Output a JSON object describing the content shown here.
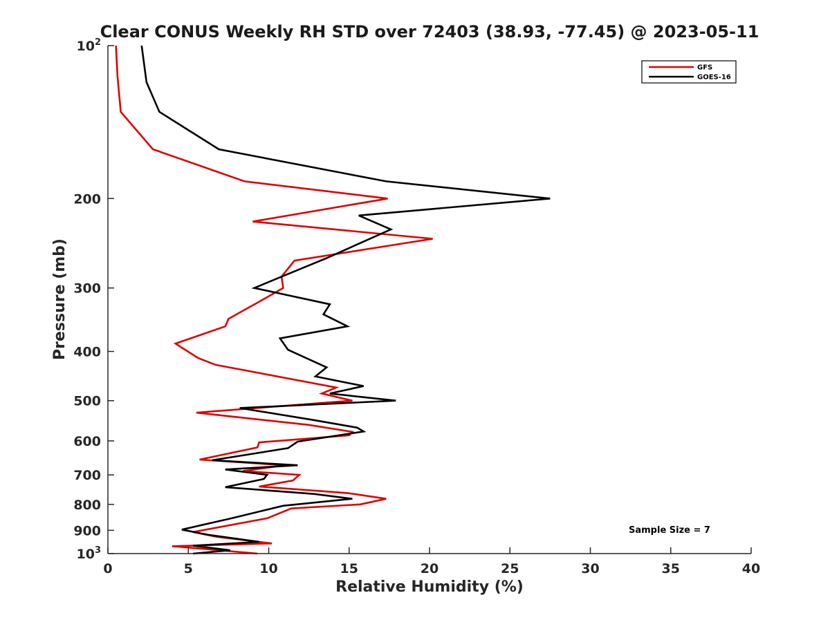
{
  "chart_data": {
    "type": "line",
    "title": "Clear CONUS Weekly RH STD over 72403 (38.93, -77.45) @ 2023-05-11",
    "xlabel": "Relative Humidity (%)",
    "ylabel": "Pressure (mb)",
    "xlim": [
      0,
      40
    ],
    "ylim": [
      100,
      1000
    ],
    "y_scale": "log",
    "y_reversed": true,
    "grid": false,
    "legend_position": "top-right",
    "x_ticks": [
      0,
      5,
      10,
      15,
      20,
      25,
      30,
      35,
      40
    ],
    "y_ticks": [
      {
        "value": 100,
        "base": "10",
        "exp": "2"
      },
      {
        "value": 200,
        "text": "200"
      },
      {
        "value": 300,
        "text": "300"
      },
      {
        "value": 400,
        "text": "400"
      },
      {
        "value": 500,
        "text": "500"
      },
      {
        "value": 600,
        "text": "600"
      },
      {
        "value": 700,
        "text": "700"
      },
      {
        "value": 800,
        "text": "800"
      },
      {
        "value": 900,
        "text": "900"
      },
      {
        "value": 1000,
        "base": "10",
        "exp": "3"
      }
    ],
    "annotation": "Sample Size = 7",
    "series": [
      {
        "name": "GFS",
        "color": "#e00000",
        "points": [
          [
            0.5,
            100
          ],
          [
            0.6,
            115
          ],
          [
            0.8,
            135
          ],
          [
            2.8,
            160
          ],
          [
            8.5,
            185
          ],
          [
            17.4,
            200
          ],
          [
            9.0,
            222
          ],
          [
            20.2,
            240
          ],
          [
            11.6,
            265
          ],
          [
            10.8,
            285
          ],
          [
            10.9,
            300
          ],
          [
            9.2,
            322
          ],
          [
            7.5,
            345
          ],
          [
            7.3,
            357
          ],
          [
            4.2,
            386
          ],
          [
            5.6,
            412
          ],
          [
            6.7,
            425
          ],
          [
            14.2,
            471
          ],
          [
            13.3,
            484
          ],
          [
            15.2,
            500
          ],
          [
            5.5,
            528
          ],
          [
            12.5,
            558
          ],
          [
            15.2,
            576
          ],
          [
            15.0,
            585
          ],
          [
            9.4,
            604
          ],
          [
            9.3,
            618
          ],
          [
            5.7,
            653
          ],
          [
            11.0,
            670
          ],
          [
            8.4,
            688
          ],
          [
            11.9,
            700
          ],
          [
            11.5,
            718
          ],
          [
            9.4,
            738
          ],
          [
            14.9,
            760
          ],
          [
            17.3,
            780
          ],
          [
            15.7,
            800
          ],
          [
            11.4,
            815
          ],
          [
            9.9,
            852
          ],
          [
            5.3,
            907
          ],
          [
            6.8,
            927
          ],
          [
            10.2,
            955
          ],
          [
            4.0,
            967
          ],
          [
            9.3,
            1000
          ]
        ]
      },
      {
        "name": "GOES-16",
        "color": "#000000",
        "points": [
          [
            2.1,
            100
          ],
          [
            2.4,
            118
          ],
          [
            3.2,
            135
          ],
          [
            6.9,
            160
          ],
          [
            17.3,
            185
          ],
          [
            27.5,
            200
          ],
          [
            15.6,
            216
          ],
          [
            17.6,
            230
          ],
          [
            13.6,
            262
          ],
          [
            10.8,
            285
          ],
          [
            9.1,
            300
          ],
          [
            13.8,
            323
          ],
          [
            13.4,
            338
          ],
          [
            14.9,
            357
          ],
          [
            10.7,
            377
          ],
          [
            11.2,
            397
          ],
          [
            13.6,
            430
          ],
          [
            12.9,
            448
          ],
          [
            15.9,
            468
          ],
          [
            13.8,
            484
          ],
          [
            17.9,
            500
          ],
          [
            8.2,
            517
          ],
          [
            12.8,
            546
          ],
          [
            15.5,
            565
          ],
          [
            15.9,
            575
          ],
          [
            11.8,
            602
          ],
          [
            11.2,
            620
          ],
          [
            6.5,
            655
          ],
          [
            11.8,
            670
          ],
          [
            7.3,
            683
          ],
          [
            9.9,
            700
          ],
          [
            9.7,
            713
          ],
          [
            7.3,
            740
          ],
          [
            12.8,
            763
          ],
          [
            15.2,
            780
          ],
          [
            10.9,
            805
          ],
          [
            7.7,
            852
          ],
          [
            4.6,
            897
          ],
          [
            6.2,
            918
          ],
          [
            9.4,
            948
          ],
          [
            5.3,
            965
          ],
          [
            7.6,
            985
          ],
          [
            5.3,
            1000
          ]
        ]
      }
    ]
  }
}
